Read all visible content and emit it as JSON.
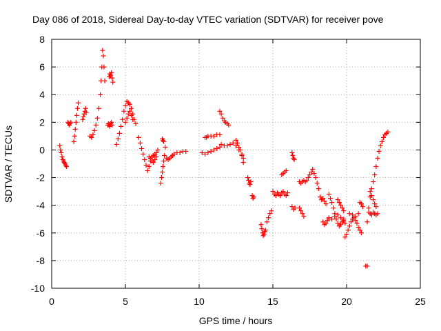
{
  "chart_data": {
    "type": "scatter",
    "title": "Day 086 of 2018, Sidereal Day-to-day VTEC variation (SDTVAR) for receiver pove",
    "xlabel": "GPS time / hours",
    "ylabel": "SDTVAR / TECUs",
    "xlim": [
      0,
      25
    ],
    "ylim": [
      -10,
      8
    ],
    "xticks": [
      0,
      5,
      10,
      15,
      20,
      25
    ],
    "yticks": [
      -10,
      -8,
      -6,
      -4,
      -2,
      0,
      2,
      4,
      6,
      8
    ],
    "grid": true,
    "marker": "+",
    "color": "#ff0000",
    "series": [
      {
        "name": "SDTVAR",
        "segments": [
          {
            "x": [
              0.55,
              0.6,
              0.65,
              0.7,
              0.75,
              0.8,
              0.85,
              0.9,
              0.95,
              1.0
            ],
            "y": [
              0.3,
              0.0,
              -0.2,
              -0.5,
              -0.7,
              -0.8,
              -0.9,
              -1.0,
              -1.1,
              -1.2
            ]
          },
          {
            "x": [
              1.1,
              1.15,
              1.2,
              1.25,
              1.3
            ],
            "y": [
              2.0,
              1.9,
              1.8,
              1.9,
              2.0
            ]
          },
          {
            "x": [
              1.5,
              1.55,
              1.6,
              1.65,
              1.7,
              1.75,
              1.8
            ],
            "y": [
              0.6,
              1.0,
              1.5,
              2.0,
              2.5,
              3.0,
              3.4
            ]
          },
          {
            "x": [
              2.1,
              2.15,
              2.2,
              2.25,
              2.3,
              2.35
            ],
            "y": [
              2.2,
              2.4,
              2.6,
              2.8,
              3.0,
              2.7
            ]
          },
          {
            "x": [
              2.6,
              2.7,
              2.8,
              2.9,
              3.0,
              3.1,
              3.2,
              3.3,
              3.35,
              3.4,
              3.45,
              3.5,
              3.55,
              3.6
            ],
            "y": [
              1.0,
              0.9,
              1.1,
              1.4,
              1.8,
              2.3,
              3.0,
              4.0,
              5.0,
              6.0,
              7.2,
              6.8,
              6.0,
              5.0
            ]
          },
          {
            "x": [
              3.8,
              3.85,
              3.9,
              3.95,
              4.0,
              4.05,
              4.1,
              4.15
            ],
            "y": [
              1.8,
              1.9,
              5.3,
              5.5,
              5.4,
              5.6,
              5.2,
              4.9
            ]
          },
          {
            "x": [
              3.9,
              3.95,
              4.0,
              4.05,
              4.1
            ],
            "y": [
              1.8,
              1.7,
              1.9,
              2.0,
              1.8
            ]
          },
          {
            "x": [
              4.4,
              4.5,
              4.6,
              4.7,
              4.8,
              4.9,
              5.0,
              5.1,
              5.2,
              5.3,
              5.4,
              5.5,
              5.6,
              5.7
            ],
            "y": [
              0.4,
              0.8,
              1.2,
              1.7,
              2.2,
              2.8,
              3.2,
              3.5,
              3.4,
              3.3,
              3.0,
              2.6,
              2.2,
              1.9
            ]
          },
          {
            "x": [
              5.0,
              5.1,
              5.2,
              5.3,
              5.4,
              5.5
            ],
            "y": [
              2.0,
              2.3,
              2.6,
              2.8,
              2.5,
              2.2
            ]
          },
          {
            "x": [
              5.9,
              6.0,
              6.1,
              6.2,
              6.3,
              6.4,
              6.5,
              6.6,
              6.7,
              6.8,
              6.9,
              7.0,
              7.1,
              7.2
            ],
            "y": [
              0.9,
              0.5,
              0.1,
              -0.3,
              -0.7,
              -1.1,
              -1.5,
              -1.2,
              -0.8,
              -0.5,
              -0.4,
              -0.3,
              -0.2,
              0.0
            ]
          },
          {
            "x": [
              6.6,
              6.7,
              6.8,
              6.9,
              7.0,
              7.1
            ],
            "y": [
              -0.5,
              -0.6,
              -0.8,
              -0.9,
              -0.7,
              -0.5
            ]
          },
          {
            "x": [
              7.4,
              7.45,
              7.5,
              7.55,
              7.6,
              7.65,
              7.7
            ],
            "y": [
              -2.4,
              -2.0,
              -1.6,
              -1.2,
              -0.8,
              -0.4,
              0.2
            ]
          },
          {
            "x": [
              7.5,
              7.55,
              7.6
            ],
            "y": [
              0.8,
              0.7,
              0.6
            ]
          },
          {
            "x": [
              7.8,
              7.9,
              8.0,
              8.1,
              8.2,
              8.3,
              8.5,
              8.7,
              8.9,
              9.1
            ],
            "y": [
              -0.6,
              -0.7,
              -0.6,
              -0.5,
              -0.4,
              -0.3,
              -0.2,
              -0.2,
              -0.1,
              -0.1
            ]
          },
          {
            "x": [
              10.2,
              10.4,
              10.6,
              10.8,
              11.0,
              11.2,
              11.4
            ],
            "y": [
              -0.2,
              -0.3,
              -0.2,
              -0.1,
              0.0,
              0.1,
              0.2
            ]
          },
          {
            "x": [
              10.4,
              10.5,
              10.6,
              10.8,
              11.0,
              11.2,
              11.4
            ],
            "y": [
              0.9,
              0.9,
              1.0,
              1.0,
              1.0,
              1.1,
              1.1
            ]
          },
          {
            "x": [
              11.4,
              11.5,
              11.6,
              11.7,
              11.8,
              11.9,
              12.0
            ],
            "y": [
              2.8,
              2.6,
              2.3,
              2.1,
              2.0,
              1.9,
              1.8
            ]
          },
          {
            "x": [
              11.5,
              11.7,
              11.9,
              12.1,
              12.3,
              12.5,
              12.7,
              12.9,
              13.0
            ],
            "y": [
              0.4,
              0.3,
              0.3,
              0.4,
              0.5,
              0.3,
              0.0,
              -0.4,
              -0.9
            ]
          },
          {
            "x": [
              12.5,
              12.6,
              12.7,
              12.8,
              12.9,
              13.0
            ],
            "y": [
              0.7,
              0.5,
              0.2,
              0.0,
              -0.3,
              -0.6
            ]
          },
          {
            "x": [
              13.3,
              13.35,
              13.4,
              13.45,
              13.5
            ],
            "y": [
              -2.0,
              -2.2,
              -2.4,
              -2.5,
              -2.3
            ]
          },
          {
            "x": [
              13.6,
              13.65,
              13.7
            ],
            "y": [
              -3.3,
              -3.5,
              -3.4
            ]
          },
          {
            "x": [
              14.2,
              14.25,
              14.3,
              14.35,
              14.4,
              14.45,
              14.5
            ],
            "y": [
              -5.4,
              -5.7,
              -6.0,
              -6.2,
              -6.1,
              -5.9,
              -5.8
            ]
          },
          {
            "x": [
              14.6,
              14.7,
              14.8,
              14.9
            ],
            "y": [
              -5.2,
              -4.9,
              -4.6,
              -4.4
            ]
          },
          {
            "x": [
              15.0,
              15.1,
              15.2,
              15.3,
              15.4,
              15.5,
              15.6,
              15.7,
              15.8,
              15.9,
              16.0
            ],
            "y": [
              -3.0,
              -3.2,
              -3.3,
              -3.1,
              -3.2,
              -3.3,
              -3.1,
              -3.0,
              -3.2,
              -3.3,
              -3.1
            ]
          },
          {
            "x": [
              15.6,
              15.7,
              15.8,
              15.9
            ],
            "y": [
              -1.8,
              -1.7,
              -1.6,
              -1.5
            ]
          },
          {
            "x": [
              16.3,
              16.35,
              16.4,
              16.45
            ],
            "y": [
              -0.2,
              -0.4,
              -0.6,
              -0.7
            ]
          },
          {
            "x": [
              16.3,
              16.4,
              16.5
            ],
            "y": [
              -4.1,
              -4.3,
              -4.2
            ]
          },
          {
            "x": [
              16.8,
              16.9,
              17.0,
              17.1
            ],
            "y": [
              -4.2,
              -4.4,
              -4.6,
              -4.8
            ]
          },
          {
            "x": [
              16.8,
              16.9,
              17.0,
              17.1,
              17.2,
              17.3,
              17.4
            ],
            "y": [
              -2.3,
              -2.4,
              -2.3,
              -2.2,
              -2.3,
              -2.2,
              -2.0
            ]
          },
          {
            "x": [
              17.5,
              17.6,
              17.7,
              17.8,
              17.9,
              18.0,
              18.1
            ],
            "y": [
              -1.8,
              -1.6,
              -1.4,
              -1.7,
              -2.0,
              -2.4,
              -2.8
            ]
          },
          {
            "x": [
              18.2,
              18.3,
              18.4,
              18.5,
              18.6
            ],
            "y": [
              -3.4,
              -3.6,
              -3.5,
              -3.7,
              -3.9
            ]
          },
          {
            "x": [
              18.4,
              18.5,
              18.6,
              18.7,
              18.8
            ],
            "y": [
              -5.2,
              -5.4,
              -5.3,
              -5.1,
              -5.0
            ]
          },
          {
            "x": [
              18.8,
              18.9,
              19.0,
              19.1,
              19.2,
              19.3,
              19.4,
              19.5,
              19.6,
              19.7,
              19.8,
              19.9
            ],
            "y": [
              -3.2,
              -3.5,
              -3.8,
              -4.2,
              -4.6,
              -5.0,
              -5.3,
              -5.5,
              -5.4,
              -5.2,
              -5.0,
              -5.3
            ]
          },
          {
            "x": [
              18.8,
              19.0,
              19.2,
              19.4,
              19.6,
              19.8
            ],
            "y": [
              -4.9,
              -5.0,
              -4.8,
              -4.7,
              -4.9,
              -5.1
            ]
          },
          {
            "x": [
              19.4,
              19.5,
              19.6,
              19.7,
              19.8
            ],
            "y": [
              -3.6,
              -3.8,
              -4.0,
              -4.2,
              -4.4
            ]
          },
          {
            "x": [
              19.9,
              20.0,
              20.1,
              20.2,
              20.3,
              20.4,
              20.5,
              20.6,
              20.7,
              20.8,
              20.9,
              21.0
            ],
            "y": [
              -6.3,
              -6.1,
              -5.8,
              -5.5,
              -5.2,
              -5.0,
              -4.9,
              -5.1,
              -5.3,
              -5.6,
              -5.8,
              -6.0
            ]
          },
          {
            "x": [
              20.2,
              20.4,
              20.6,
              20.8
            ],
            "y": [
              -4.6,
              -4.7,
              -4.8,
              -4.6
            ]
          },
          {
            "x": [
              20.9,
              21.0,
              21.1
            ],
            "y": [
              -3.8,
              -3.9,
              -4.1
            ]
          },
          {
            "x": [
              21.3,
              21.4
            ],
            "y": [
              -8.4,
              -8.4
            ]
          },
          {
            "x": [
              21.4,
              21.5,
              21.6,
              21.7,
              21.8,
              21.9,
              22.0,
              22.1,
              22.2,
              22.3,
              22.4,
              22.5,
              22.6,
              22.7,
              22.8
            ],
            "y": [
              -5.2,
              -4.2,
              -3.4,
              -2.8,
              -2.3,
              -1.8,
              -1.2,
              -0.6,
              -0.1,
              0.3,
              0.6,
              0.9,
              1.1,
              1.2,
              1.3
            ]
          },
          {
            "x": [
              21.5,
              21.6,
              21.7,
              21.8,
              21.9,
              22.0,
              22.1
            ],
            "y": [
              -4.5,
              -4.6,
              -4.7,
              -4.5,
              -4.6,
              -4.7,
              -4.6
            ]
          },
          {
            "x": [
              21.6,
              21.7,
              21.8,
              21.9,
              22.0
            ],
            "y": [
              -3.0,
              -3.3,
              -3.6,
              -3.9,
              -4.1
            ]
          }
        ]
      }
    ]
  }
}
